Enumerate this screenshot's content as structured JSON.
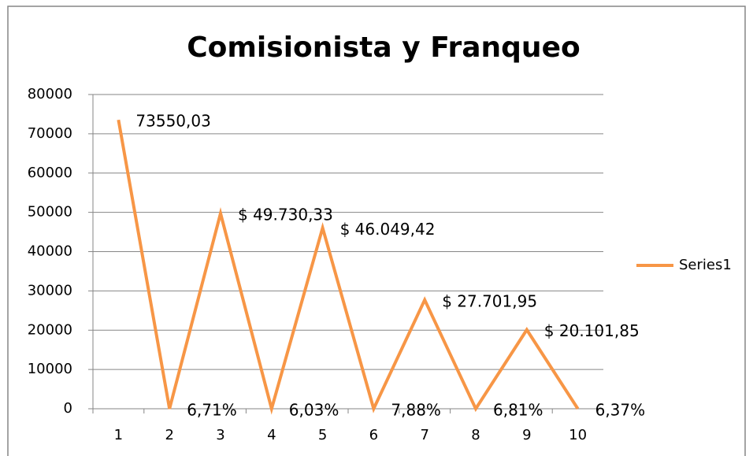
{
  "chart_data": {
    "type": "line",
    "title": "Comisionista y Franqueo",
    "categories": [
      1,
      2,
      3,
      4,
      5,
      6,
      7,
      8,
      9,
      10
    ],
    "series": [
      {
        "name": "Series1",
        "color": "#f79646",
        "values": [
          73550.03,
          0.0671,
          49730.33,
          0.0603,
          46049.42,
          0.0788,
          27701.95,
          0.0681,
          20101.85,
          0.0637
        ],
        "value_labels": [
          "73550,03",
          "6,71%",
          "$ 49.730,33",
          "6,03%",
          "$ 46.049,42",
          "7,88%",
          "$ 27.701,95",
          "6,81%",
          "$ 20.101,85",
          "6,37%"
        ]
      }
    ],
    "ylim": [
      0,
      80000
    ],
    "yticks": [
      0,
      10000,
      20000,
      30000,
      40000,
      50000,
      60000,
      70000,
      80000
    ],
    "grid": true,
    "legend": "right"
  }
}
